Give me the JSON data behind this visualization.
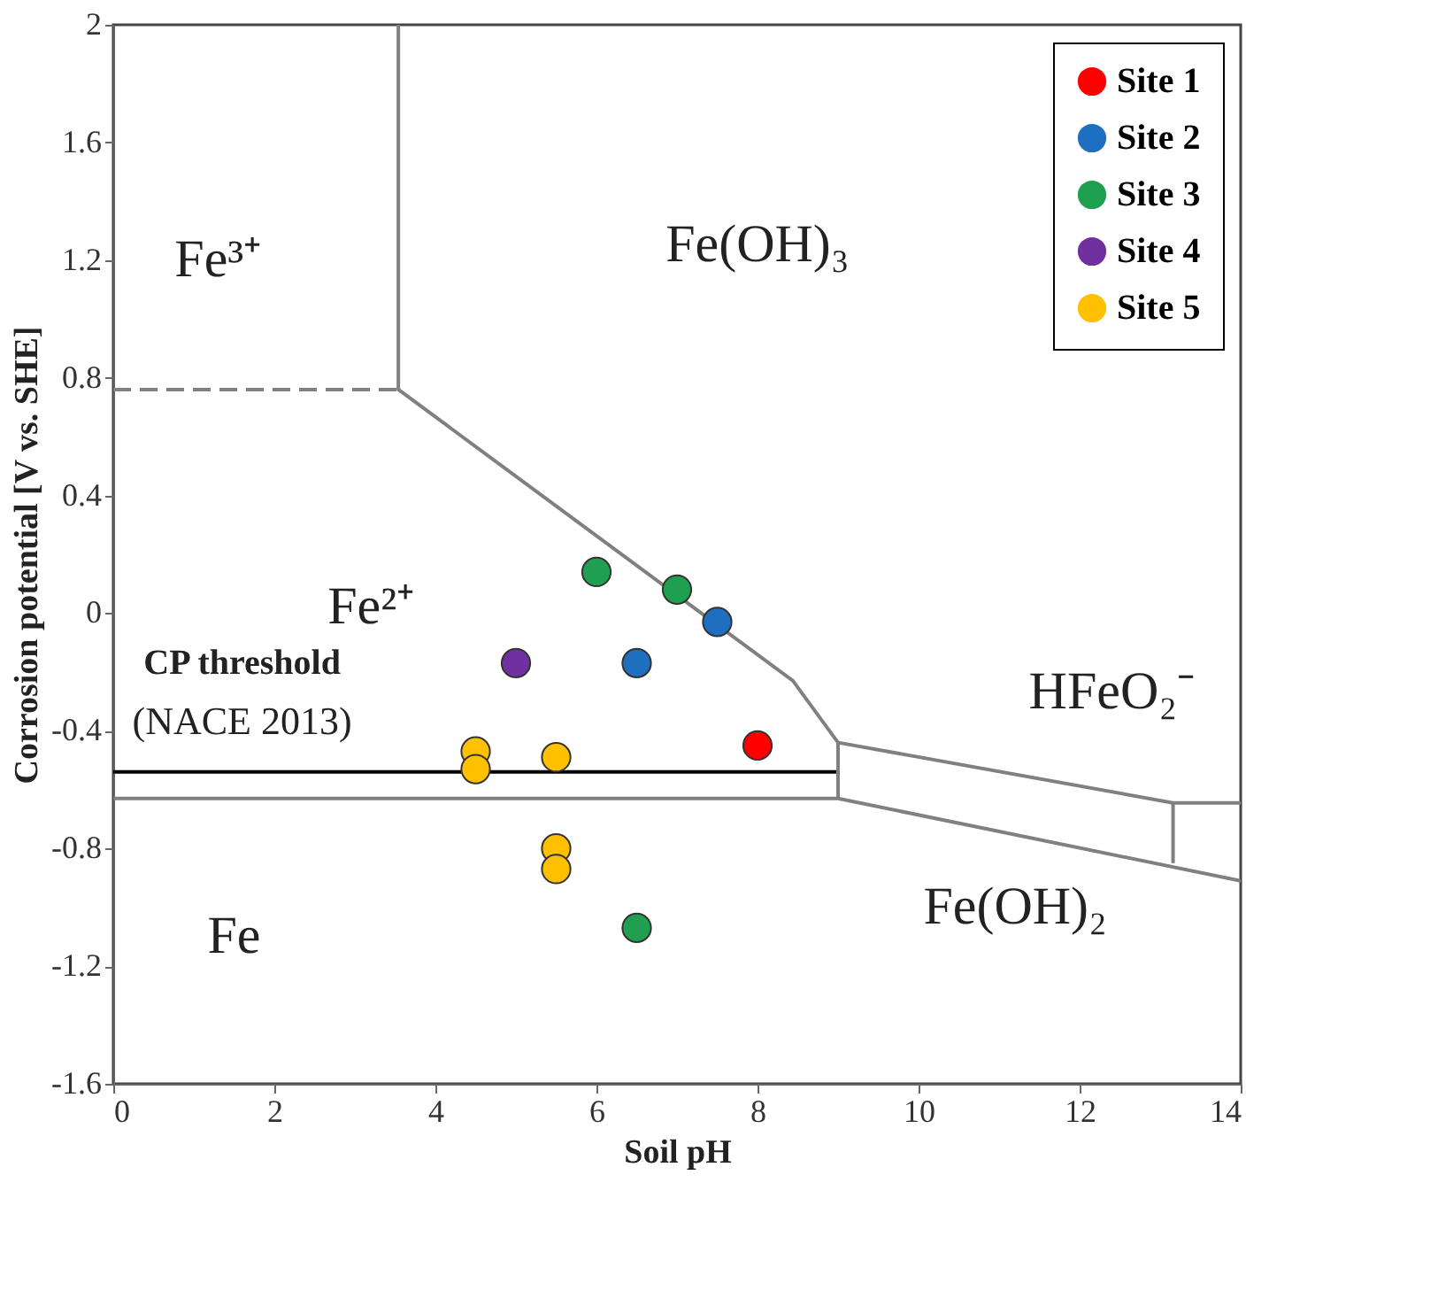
{
  "chart_data": {
    "type": "scatter",
    "xlabel": "Soil pH",
    "ylabel": "Corrosion potential  [V vs. SHE]",
    "xlim": [
      0,
      14
    ],
    "ylim": [
      -1.6,
      2
    ],
    "xticks": [
      0,
      2,
      4,
      6,
      8,
      10,
      12,
      14
    ],
    "yticks": [
      -1.6,
      -1.2,
      -0.8,
      -0.4,
      0,
      0.4,
      0.8,
      1.2,
      1.6,
      2
    ],
    "grid": false,
    "legend": "top right",
    "series": [
      {
        "name": "Site 1",
        "color": "#ff0000",
        "marker": "circle",
        "x": [
          8
        ],
        "values": [
          -0.45
        ]
      },
      {
        "name": "Site 2",
        "color": "#1f6fc0",
        "marker": "circle",
        "x": [
          7.5,
          6.5
        ],
        "values": [
          -0.03,
          -0.17
        ]
      },
      {
        "name": "Site 3",
        "color": "#1fa050",
        "marker": "circle",
        "x": [
          6,
          7,
          6.5
        ],
        "values": [
          0.14,
          0.08,
          -1.07
        ]
      },
      {
        "name": "Site 4",
        "color": "#7030a0",
        "marker": "circle",
        "x": [
          5
        ],
        "values": [
          -0.17
        ]
      },
      {
        "name": "Site 5",
        "color": "#ffc000",
        "marker": "circle",
        "x": [
          4.5,
          4.5,
          5.5,
          5.5,
          5.5
        ],
        "values": [
          -0.47,
          -0.53,
          -0.49,
          -0.8,
          -0.87
        ]
      },
      {
        "type": "line",
        "color": "#000000",
        "x": [
          0,
          9
        ],
        "values": [
          -0.54,
          -0.54
        ]
      },
      {
        "type": "line",
        "color": "#808080",
        "x": [
          0,
          9,
          14
        ],
        "values": [
          -0.63,
          -0.63,
          -0.91
        ]
      },
      {
        "type": "line",
        "color": "#808080",
        "line_style": "dashed",
        "x": [
          0,
          3.54
        ],
        "values": [
          0.76,
          0.76
        ]
      },
      {
        "type": "line",
        "color": "#808080",
        "x": [
          3.54,
          3.54,
          8.44,
          9,
          9
        ],
        "values": [
          2,
          0.76,
          -0.23,
          -0.44,
          -0.63
        ]
      },
      {
        "type": "line",
        "color": "#808080",
        "x": [
          9,
          13.16,
          14
        ],
        "values": [
          -0.44,
          -0.645,
          -0.645
        ]
      },
      {
        "type": "line",
        "color": "#808080",
        "x": [
          13.16,
          13.16
        ],
        "values": [
          -0.645,
          -0.85
        ]
      }
    ],
    "annotations": [
      "Fe³⁺",
      "Fe(OH)₃",
      "Fe²⁺",
      "CP threshold",
      "(NACE 2013)",
      "Fe",
      "Fe(OH)₂",
      "HFeO₂⁻"
    ]
  }
}
